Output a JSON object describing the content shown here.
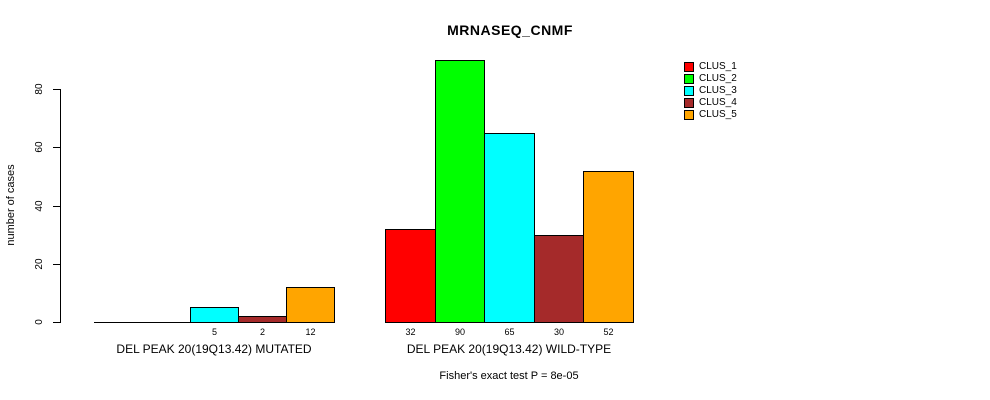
{
  "chart_data": {
    "type": "bar",
    "title": "MRNASEQ_CNMF",
    "xlabel": "",
    "ylabel": "number of cases",
    "ylim": [
      0,
      90
    ],
    "yticks": [
      0,
      20,
      40,
      60,
      80
    ],
    "grid": false,
    "legend_position": "top-right",
    "categories": [
      "DEL PEAK 20(19Q13.42) MUTATED",
      "DEL PEAK 20(19Q13.42) WILD-TYPE"
    ],
    "series": [
      {
        "name": "CLUS_1",
        "color": "#FF0000",
        "values": [
          0,
          32
        ]
      },
      {
        "name": "CLUS_2",
        "color": "#00FF00",
        "values": [
          0,
          90
        ]
      },
      {
        "name": "CLUS_3",
        "color": "#00FFFF",
        "values": [
          5,
          65
        ]
      },
      {
        "name": "CLUS_4",
        "color": "#A52A2A",
        "values": [
          2,
          30
        ]
      },
      {
        "name": "CLUS_5",
        "color": "#FFA500",
        "values": [
          12,
          52
        ]
      }
    ],
    "bar_value_labels": [
      [
        "",
        "",
        "5",
        "2",
        "12"
      ],
      [
        "32",
        "90",
        "65",
        "30",
        "52"
      ]
    ],
    "annotation": "Fisher's exact test P = 8e-05"
  }
}
